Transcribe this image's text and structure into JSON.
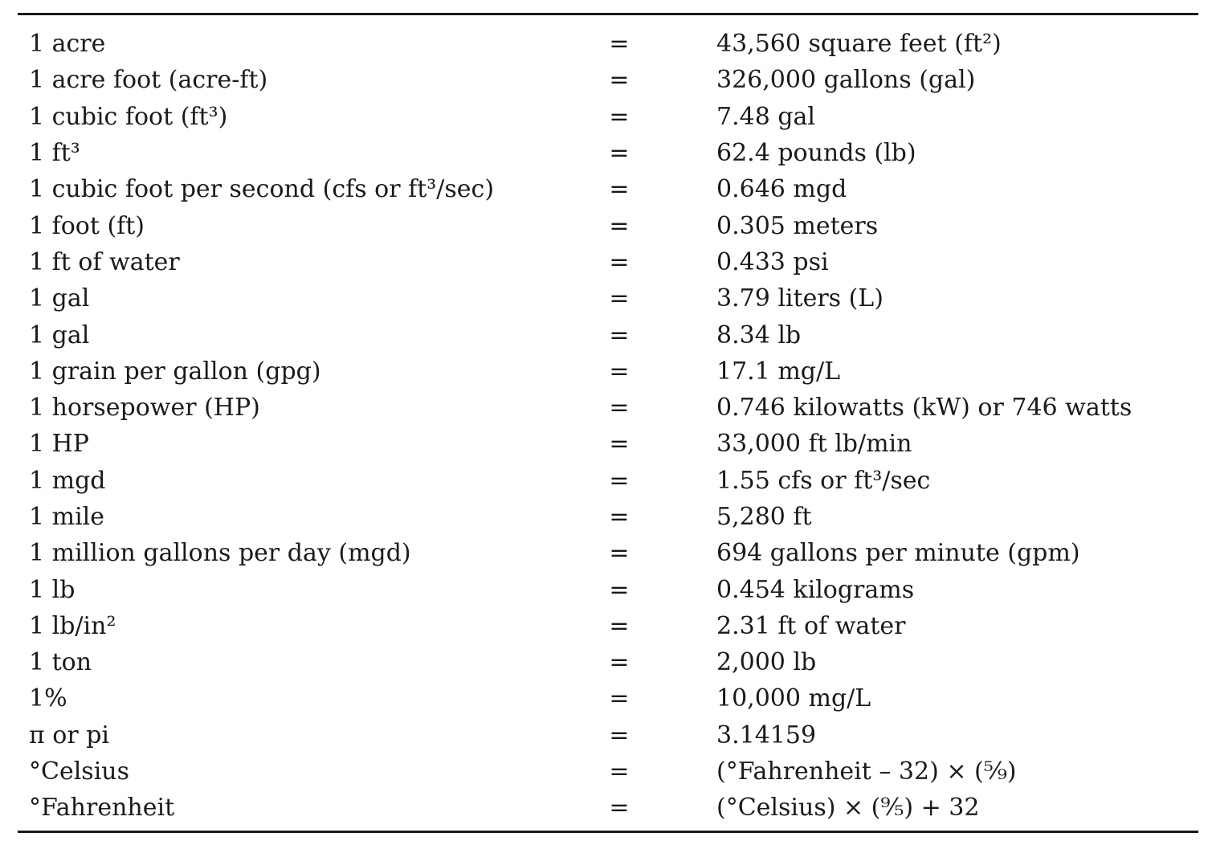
{
  "rows": [
    {
      "lhs": "1 acre",
      "eq": "=",
      "rhs": "43,560 square feet (ft²)"
    },
    {
      "lhs": "1 acre foot (acre-ft)",
      "eq": "=",
      "rhs": "326,000 gallons (gal)"
    },
    {
      "lhs": "1 cubic foot (ft³)",
      "eq": "=",
      "rhs": "7.48 gal"
    },
    {
      "lhs": "1 ft³",
      "eq": "=",
      "rhs": "62.4 pounds (lb)"
    },
    {
      "lhs": "1 cubic foot per second (cfs or ft³/sec)",
      "eq": "=",
      "rhs": "0.646 mgd"
    },
    {
      "lhs": "1 foot (ft)",
      "eq": "=",
      "rhs": "0.305 meters"
    },
    {
      "lhs": "1 ft of water",
      "eq": "=",
      "rhs": "0.433 psi"
    },
    {
      "lhs": "1 gal",
      "eq": "=",
      "rhs": "3.79 liters (L)"
    },
    {
      "lhs": "1 gal",
      "eq": "=",
      "rhs": "8.34 lb"
    },
    {
      "lhs": "1 grain per gallon (gpg)",
      "eq": "=",
      "rhs": "17.1 mg/L"
    },
    {
      "lhs": "1 horsepower (HP)",
      "eq": "=",
      "rhs": "0.746 kilowatts (kW) or 746 watts"
    },
    {
      "lhs": "1 HP",
      "eq": "=",
      "rhs": "33,000 ft lb/min"
    },
    {
      "lhs": "1 mgd",
      "eq": "=",
      "rhs": "1.55 cfs or ft³/sec"
    },
    {
      "lhs": "1 mile",
      "eq": "=",
      "rhs": "5,280 ft"
    },
    {
      "lhs": "1 million gallons per day (mgd)",
      "eq": "=",
      "rhs": "694 gallons per minute (gpm)"
    },
    {
      "lhs": "1 lb",
      "eq": "=",
      "rhs": "0.454 kilograms"
    },
    {
      "lhs": "1 lb/in²",
      "eq": "=",
      "rhs": "2.31 ft of water"
    },
    {
      "lhs": "1 ton",
      "eq": "=",
      "rhs": "2,000 lb"
    },
    {
      "lhs": "1%",
      "eq": "=",
      "rhs": "10,000 mg/L"
    },
    {
      "lhs": "π or pi",
      "eq": "=",
      "rhs": "3.14159"
    },
    {
      "lhs": "°Celsius",
      "eq": "=",
      "rhs": "(°Fahrenheit – 32) × (⁵⁄₉)"
    },
    {
      "lhs": "°Fahrenheit",
      "eq": "=",
      "rhs": "(°Celsius) × (⁹⁄₅) + 32"
    }
  ]
}
